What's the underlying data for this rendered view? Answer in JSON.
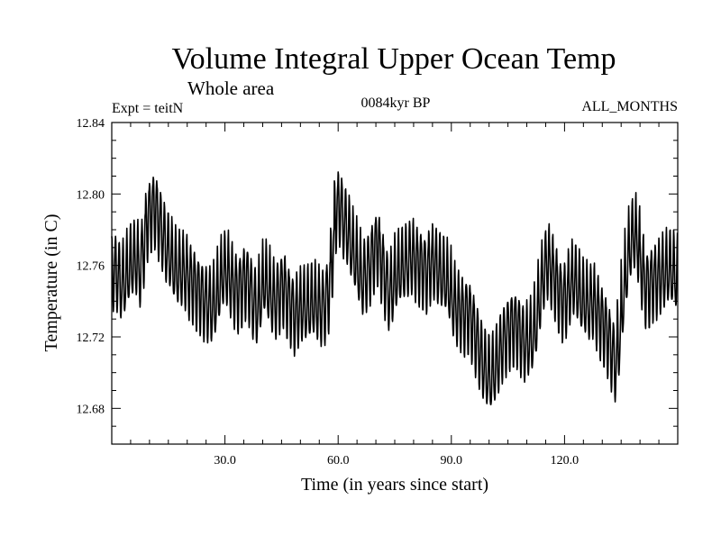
{
  "chart_data": {
    "type": "line",
    "title": "Volume Integral Upper Ocean Temp",
    "subtitle": "Whole area",
    "experiment_label": "Expt = teitN",
    "period_label": "0084kyr BP",
    "months_label": "ALL_MONTHS",
    "xlabel": "Time (in years since start)",
    "ylabel": "Temperature (in C)",
    "xlim": [
      0,
      150
    ],
    "ylim": [
      12.66,
      12.84
    ],
    "x_ticks": [
      30,
      60,
      90,
      120
    ],
    "x_tick_labels": [
      "30.0",
      "60.0",
      "90.0",
      "120.0"
    ],
    "y_ticks": [
      12.68,
      12.72,
      12.76,
      12.8,
      12.84
    ],
    "y_tick_labels": [
      "12.68",
      "12.72",
      "12.76",
      "12.80",
      "12.84"
    ],
    "samples_per_year": 12,
    "series": [
      {
        "name": "Volume Integral Upper Ocean Temp",
        "color": "#000000",
        "annual_mean": [
          12.757,
          12.755,
          12.75,
          12.752,
          12.758,
          12.762,
          12.763,
          12.758,
          12.77,
          12.785,
          12.79,
          12.792,
          12.785,
          12.778,
          12.77,
          12.766,
          12.76,
          12.757,
          12.757,
          12.756,
          12.752,
          12.75,
          12.746,
          12.744,
          12.74,
          12.738,
          12.737,
          12.74,
          12.748,
          12.756,
          12.757,
          12.752,
          12.747,
          12.745,
          12.748,
          12.752,
          12.748,
          12.74,
          12.736,
          12.743,
          12.752,
          12.748,
          12.742,
          12.74,
          12.744,
          12.748,
          12.742,
          12.737,
          12.732,
          12.735,
          12.737,
          12.737,
          12.738,
          12.74,
          12.738,
          12.736,
          12.738,
          12.745,
          12.765,
          12.79,
          12.793,
          12.785,
          12.78,
          12.772,
          12.765,
          12.758,
          12.752,
          12.755,
          12.76,
          12.767,
          12.771,
          12.762,
          12.752,
          12.745,
          12.748,
          12.755,
          12.758,
          12.76,
          12.762,
          12.765,
          12.762,
          12.76,
          12.758,
          12.756,
          12.76,
          12.762,
          12.758,
          12.755,
          12.753,
          12.748,
          12.74,
          12.736,
          12.734,
          12.732,
          12.733,
          12.728,
          12.72,
          12.712,
          12.705,
          12.7,
          12.698,
          12.702,
          12.708,
          12.715,
          12.72,
          12.724,
          12.726,
          12.725,
          12.72,
          12.716,
          12.718,
          12.72,
          12.728,
          12.742,
          12.755,
          12.762,
          12.758,
          12.752,
          12.745,
          12.74,
          12.742,
          12.748,
          12.752,
          12.748,
          12.742,
          12.74,
          12.738,
          12.74,
          12.735,
          12.73,
          12.726,
          12.72,
          12.712,
          12.705,
          12.718,
          12.74,
          12.758,
          12.772,
          12.778,
          12.772,
          12.758,
          12.748,
          12.748,
          12.751,
          12.752,
          12.754,
          12.756,
          12.758,
          12.757,
          12.755
        ],
        "seasonal_amplitude": 0.02
      }
    ]
  }
}
